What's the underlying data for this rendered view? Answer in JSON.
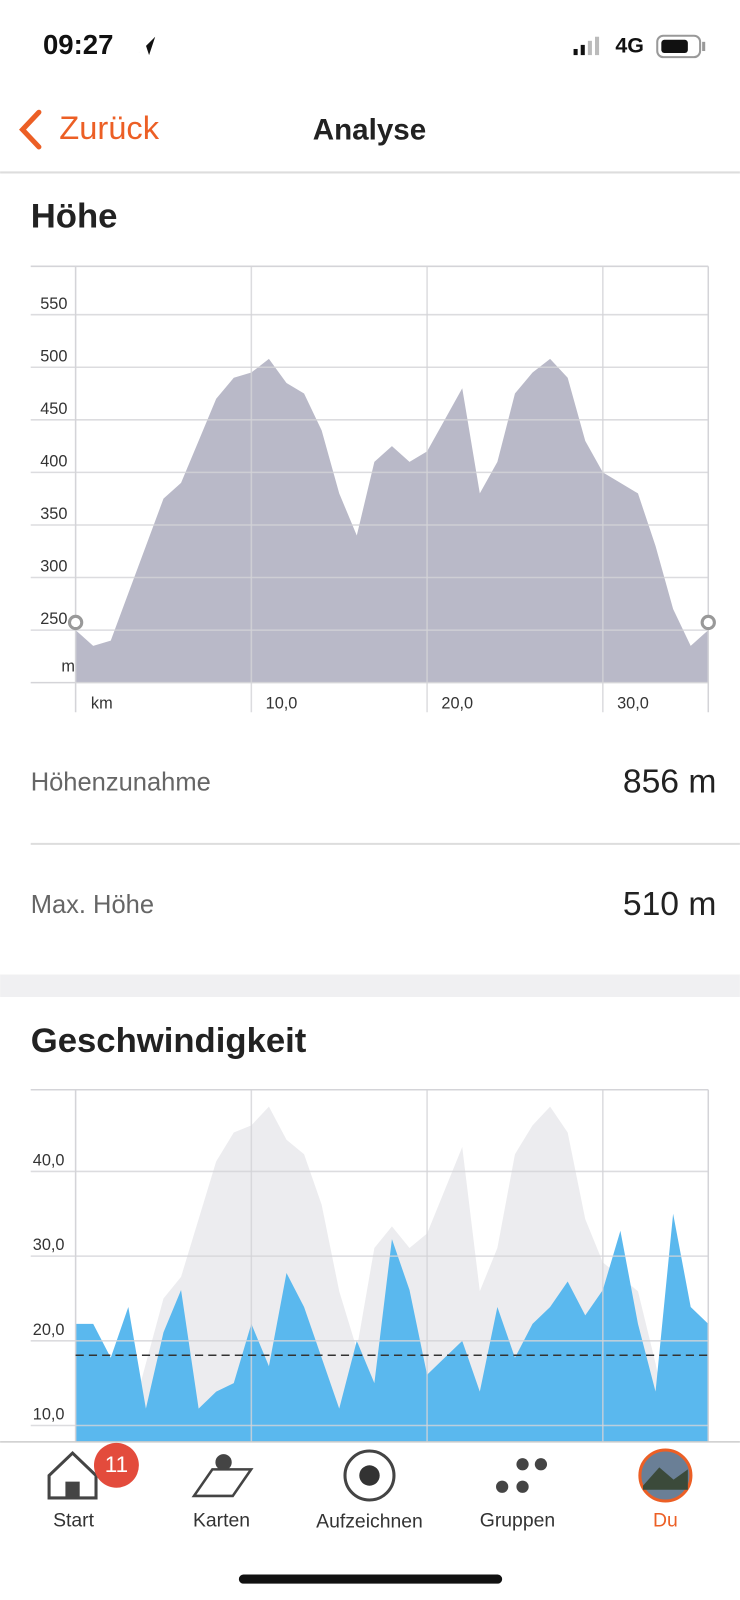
{
  "status_bar": {
    "time": "09:27",
    "network": "4G"
  },
  "nav": {
    "back": "Zurück",
    "title": "Analyse"
  },
  "elevation": {
    "title": "Höhe",
    "chart_data": {
      "type": "area",
      "xlabel": "km",
      "ylabel": "m",
      "x": [
        0,
        1,
        2,
        3,
        4,
        5,
        6,
        7,
        8,
        9,
        10,
        11,
        12,
        13,
        14,
        15,
        16,
        17,
        18,
        19,
        20,
        21,
        22,
        23,
        24,
        25,
        26,
        27,
        28,
        29,
        30,
        31,
        32,
        33,
        34,
        35,
        36
      ],
      "values": [
        250,
        235,
        240,
        285,
        330,
        375,
        390,
        430,
        470,
        490,
        495,
        508,
        485,
        475,
        440,
        380,
        340,
        410,
        425,
        410,
        420,
        450,
        480,
        380,
        410,
        475,
        495,
        508,
        490,
        430,
        400,
        390,
        380,
        330,
        270,
        235,
        250
      ],
      "xlim": [
        0,
        36
      ],
      "ylim": [
        200,
        596
      ],
      "xticks": [
        {
          "value": 10,
          "label": "10,0"
        },
        {
          "value": 20,
          "label": "20,0"
        },
        {
          "value": 30,
          "label": "30,0"
        }
      ],
      "yticks": [
        250,
        300,
        350,
        400,
        450,
        500,
        550
      ],
      "color": "#b9b9c8",
      "grid": true
    }
  },
  "stats": [
    {
      "label": "Höhenzunahme",
      "value": "856 m"
    },
    {
      "label": "Max. Höhe",
      "value": "510 m"
    }
  ],
  "speed": {
    "title": "Geschwindigkeit",
    "chart_data": {
      "type": "area",
      "x": [
        0,
        1,
        2,
        3,
        4,
        5,
        6,
        7,
        8,
        9,
        10,
        11,
        12,
        13,
        14,
        15,
        16,
        17,
        18,
        19,
        20,
        21,
        22,
        23,
        24,
        25,
        26,
        27,
        28,
        29,
        30,
        31,
        32,
        33,
        34,
        35,
        36
      ],
      "values": [
        22,
        22,
        18,
        24,
        12,
        21,
        26,
        12,
        14,
        15,
        22,
        17,
        28,
        24,
        18,
        12,
        20,
        15,
        32,
        26,
        16,
        18,
        20,
        14,
        24,
        18,
        22,
        24,
        27,
        23,
        26,
        33,
        22,
        14,
        35,
        24,
        22
      ],
      "xlim": [
        0,
        36
      ],
      "ylim": [
        0,
        50
      ],
      "xticks": [
        10,
        20,
        30
      ],
      "yticks": [
        {
          "value": 10,
          "label": "10,0"
        },
        {
          "value": 20,
          "label": "20,0"
        },
        {
          "value": 30,
          "label": "30,0"
        },
        {
          "value": 40,
          "label": "40,0"
        }
      ],
      "average": 18.3,
      "color": "#5ab8ee",
      "grid": true
    }
  },
  "tabs": [
    {
      "label": "Start",
      "badge": 11
    },
    {
      "label": "Karten"
    },
    {
      "label": "Aufzeichnen"
    },
    {
      "label": "Gruppen"
    },
    {
      "label": "Du"
    }
  ]
}
